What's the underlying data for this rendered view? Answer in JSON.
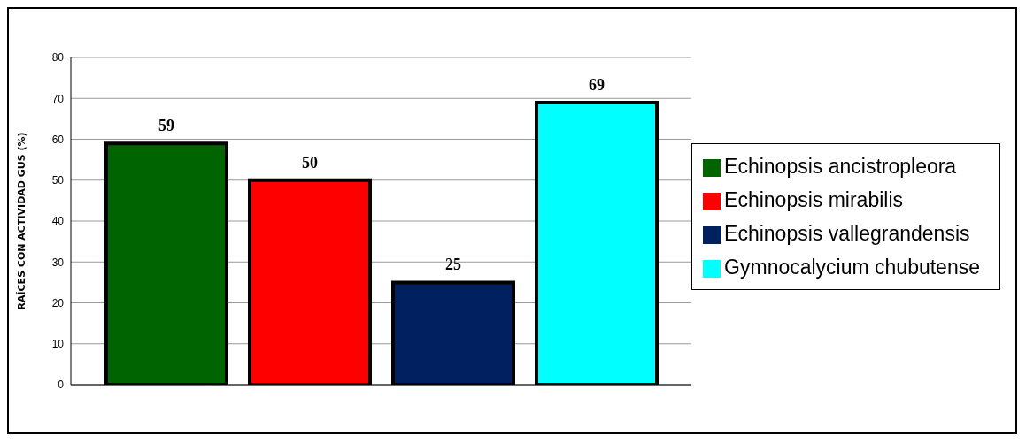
{
  "chart_data": {
    "type": "bar",
    "ylabel": "RAÍCES CON ACTIVIDAD GUS (%)",
    "categories": [
      null
    ],
    "series": [
      {
        "name": "Echinopsis ancistropleora",
        "color": "#006400",
        "values": [
          59
        ]
      },
      {
        "name": "Echinopsis mirabilis",
        "color": "#ff0000",
        "values": [
          50
        ]
      },
      {
        "name": "Echinopsis vallegrandensis",
        "color": "#002060",
        "values": [
          25
        ]
      },
      {
        "name": "Gymnocalycium chubutense",
        "color": "#00ffff",
        "values": [
          69
        ]
      }
    ],
    "ylim": [
      0,
      80
    ],
    "yticks": [
      0,
      10,
      20,
      30,
      40,
      50,
      60,
      70,
      80
    ],
    "grid": "y",
    "legend": "right",
    "data_labels": true
  }
}
